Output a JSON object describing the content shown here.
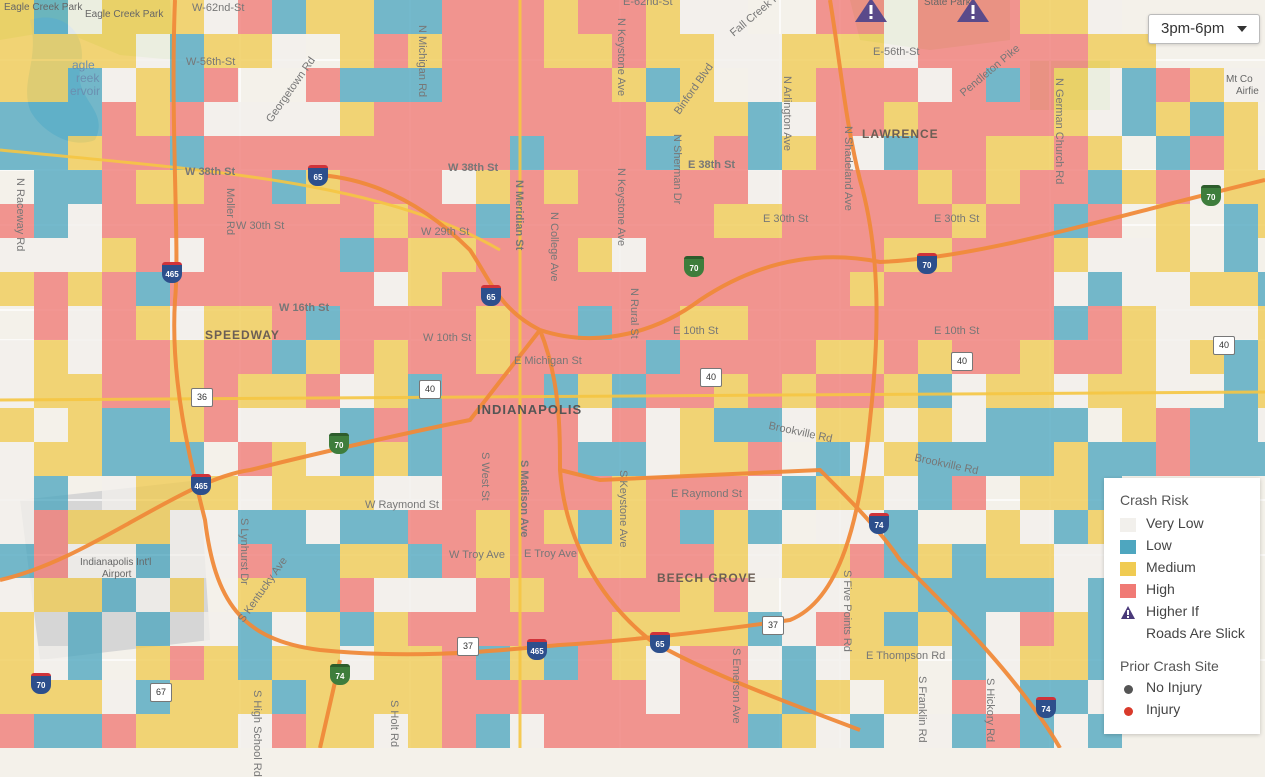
{
  "time_filter": {
    "selected": "3pm-6pm"
  },
  "legend": {
    "crash_risk_title": "Crash Risk",
    "items": [
      {
        "label": "Very Low",
        "color": "#f2f0ec"
      },
      {
        "label": "Low",
        "color": "#4ea6bf"
      },
      {
        "label": "Medium",
        "color": "#f0cb52"
      },
      {
        "label": "High",
        "color": "#f07a75"
      }
    ],
    "higher_if_line1": "Higher If",
    "higher_if_line2": "Roads Are Slick",
    "prior_title": "Prior Crash Site",
    "no_injury": "No Injury",
    "injury": "Injury",
    "no_injury_color": "#555555",
    "injury_color": "#d93a2b",
    "slick_icon_color": "#4a3a7a"
  },
  "places": {
    "indianapolis": "INDIANAPOLIS",
    "speedway": "SPEEDWAY",
    "lawrence": "LAWRENCE",
    "beech_grove": "BEECH GROVE",
    "airport_1": "Indianapolis Int'l",
    "airport_2": "Airport",
    "eagle_creek_park_1": "Eagle Creek Park",
    "eagle_creek_park_2": "Eagle Creek Park",
    "reservoir_1": "agle",
    "reservoir_2": "reek",
    "reservoir_3": "ervoir",
    "state_park": "State Park",
    "mt_comfort_1": "Mt Co",
    "mt_comfort_2": "Airfie"
  },
  "roads": {
    "w_62nd": "W-62nd-St",
    "e_62nd": "E-62nd-St",
    "fall_creek": "Fall Creek Rd",
    "e_56th": "E-56th-St",
    "w_56th": "W-56th-St",
    "pendleton": "Pendleton Pike",
    "n_michigan": "N Michigan Rd",
    "georgetown": "Georgetown Rd",
    "n_keystone_top": "N Keystone Ave",
    "binford": "Binford Blvd",
    "n_arlington": "N Arlington Ave",
    "n_shadeland": "N Shadeland Ave",
    "n_german_church": "N German Church Rd",
    "n_raceway": "N Raceway Rd",
    "w_38th": "W 38th St",
    "w_38th_b": "W 38th St",
    "e_38th": "E 38th St",
    "n_meridian": "N Meridian St",
    "n_college": "N College Ave",
    "n_sherman": "N Sherman Dr",
    "n_keystone_mid": "N Keystone Ave",
    "moller": "Moller Rd",
    "w_30th": "W 30th St",
    "w_29th": "W 29th St",
    "e_30th_a": "E 30th St",
    "e_30th_b": "E 30th St",
    "w_16th": "W 16th St",
    "w_10th": "W 10th St",
    "e_michigan": "E Michigan St",
    "e_10th_a": "E 10th St",
    "e_10th_b": "E 10th St",
    "n_rural": "N Rural St",
    "brookville_a": "Brookville Rd",
    "brookville_b": "Brookville Rd",
    "w_raymond": "W Raymond St",
    "e_raymond": "E Raymond St",
    "s_west": "S West St",
    "s_madison": "S Madison Ave",
    "s_keystone": "S Keystone Ave",
    "w_troy": "W Troy Ave",
    "e_troy": "E Troy Ave",
    "s_lynhurst": "S Lynhurst Dr",
    "s_kentucky": "S Kentucky Ave",
    "s_five_points": "S Five Points Rd",
    "e_thompson": "E Thompson Rd",
    "s_emerson": "S Emerson Ave",
    "s_franklin": "S Franklin Rd",
    "s_hickory": "S Hickory Rd",
    "s_high_school": "S High School Rd",
    "s_holt": "S Holt Rd"
  },
  "shields": {
    "i465_nw": "465",
    "i465_w": "465",
    "i465_s": "465",
    "i65_n": "65",
    "i65_c": "65",
    "i65_se": "65",
    "i70_e": "70",
    "i70_ne": "70",
    "i70_far_e": "70",
    "i70_w": "70",
    "i70_sw": "70",
    "i74_se": "74",
    "i74_s": "74",
    "i74_e": "74",
    "us40_w": "40",
    "us40_c": "40",
    "us40_e": "40",
    "us40_far_e": "40",
    "us36": "36",
    "us37_s": "37",
    "us37_se": "37",
    "sr67": "67"
  }
}
